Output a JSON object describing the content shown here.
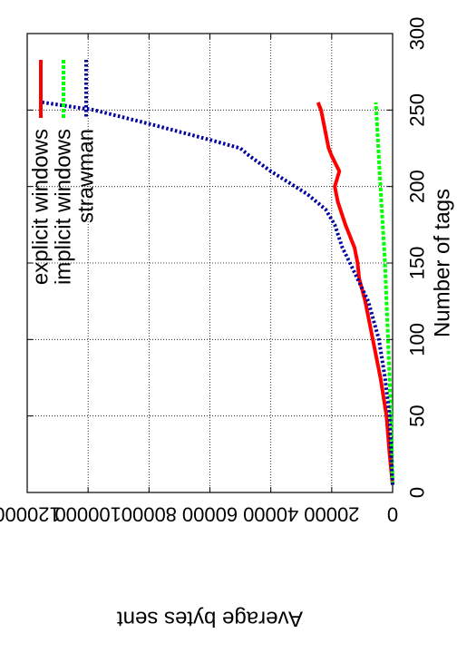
{
  "chart_data": {
    "type": "line",
    "orientation": "rotated-90-clockwise",
    "xlabel": "Number of tags",
    "ylabel": "Average bytes sent",
    "xlim": [
      0,
      300
    ],
    "ylim": [
      0,
      120000
    ],
    "x_ticks": [
      "0",
      "50",
      "100",
      "150",
      "200",
      "250",
      "300"
    ],
    "y_ticks": [
      "0",
      "20000",
      "40000",
      "60000",
      "80000",
      "100000",
      "120000"
    ],
    "grid": true,
    "legend_position": "top-left",
    "series": [
      {
        "name": "explicit windows",
        "color": "#ff0000",
        "style": "solid",
        "x": [
          5,
          25,
          50,
          75,
          100,
          125,
          140,
          150,
          160,
          175,
          190,
          200,
          210,
          220,
          225,
          230,
          240,
          250,
          255
        ],
        "y": [
          0,
          1000,
          2000,
          4000,
          6500,
          9000,
          11000,
          11500,
          12500,
          15500,
          18000,
          19000,
          17500,
          20000,
          21000,
          21500,
          22500,
          23500,
          24500
        ]
      },
      {
        "name": "implicit windows",
        "color": "#00ff00",
        "style": "dashed",
        "x": [
          5,
          50,
          100,
          150,
          200,
          255
        ],
        "y": [
          0,
          500,
          1500,
          2500,
          4000,
          5500
        ]
      },
      {
        "name": "strawman",
        "color": "#0000a0",
        "style": "dotted",
        "x": [
          5,
          25,
          50,
          75,
          100,
          125,
          150,
          160,
          175,
          185,
          195,
          210,
          220,
          225,
          230,
          240,
          250,
          255
        ],
        "y": [
          0,
          500,
          1000,
          2500,
          4500,
          8000,
          14000,
          16500,
          19000,
          22000,
          28000,
          40000,
          47000,
          50000,
          59000,
          78000,
          98000,
          115000
        ]
      }
    ]
  }
}
